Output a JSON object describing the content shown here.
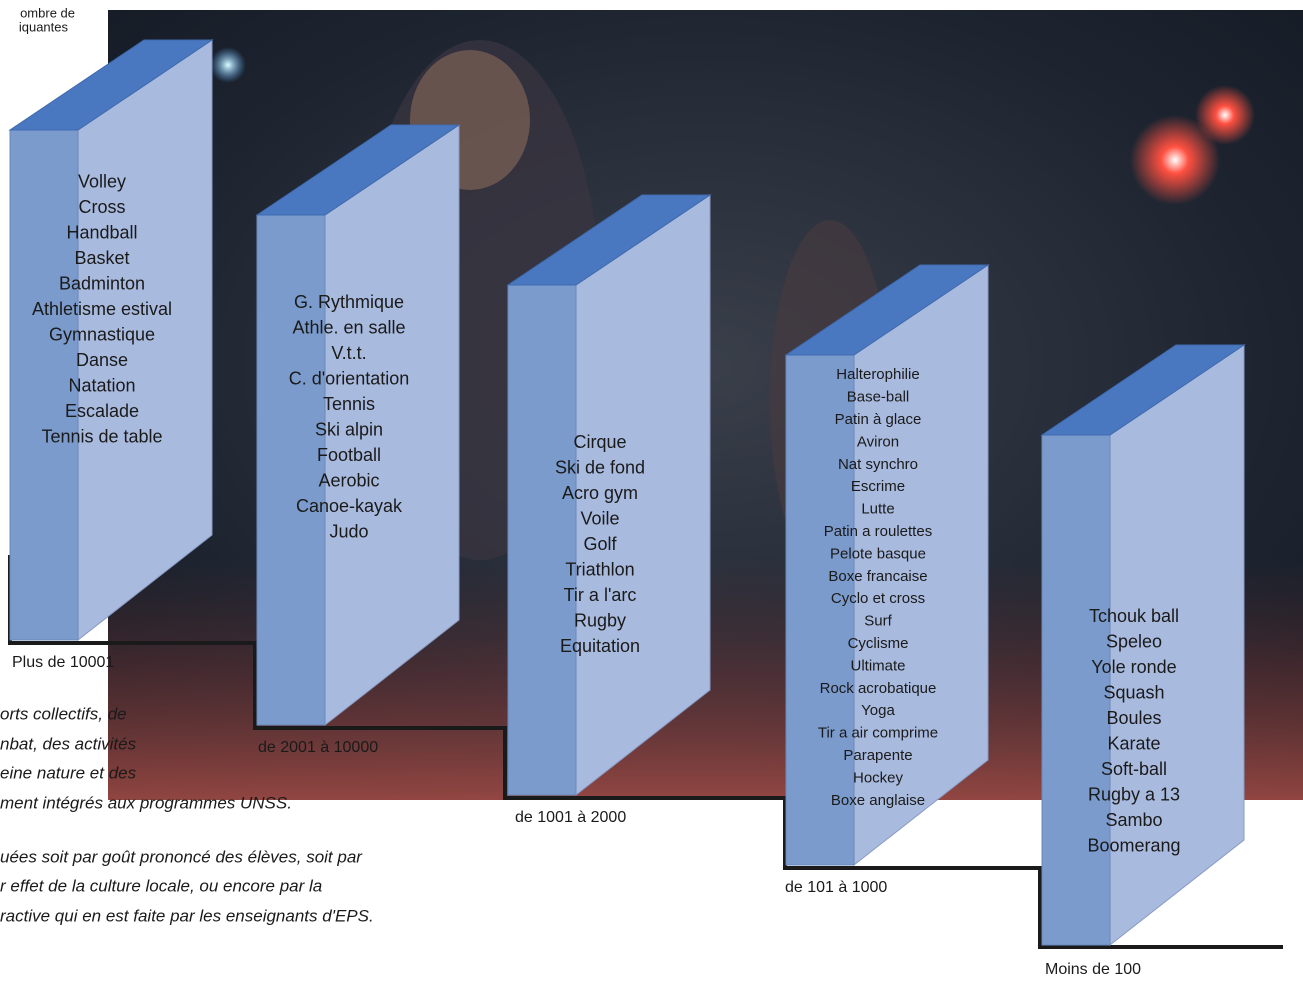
{
  "axis_label": [
    "ombre de",
    "iquantes"
  ],
  "blocks": [
    {
      "range": "Plus de 10001",
      "items": [
        "Volley",
        "Cross",
        "Handball",
        "Basket",
        "Badminton",
        "Athletisme estival",
        "Gymnastique",
        "Danse",
        "Natation",
        "Escalade",
        "Tennis de table"
      ]
    },
    {
      "range": "de 2001 à 10000",
      "items": [
        "G. Rythmique",
        "Athle. en salle",
        "V.t.t.",
        "C. d'orientation",
        "Tennis",
        "Ski alpin",
        "Football",
        "Aerobic",
        "Canoe-kayak",
        "Judo"
      ]
    },
    {
      "range": "de 1001 à 2000",
      "items": [
        "Cirque",
        "Ski de fond",
        "Acro gym",
        "Voile",
        "Golf",
        "Triathlon",
        "Tir a l'arc",
        "Rugby",
        "Equitation"
      ]
    },
    {
      "range": "de 101 à 1000",
      "items": [
        "Halterophilie",
        "Base-ball",
        "Patin à glace",
        "Aviron",
        "Nat synchro",
        "Escrime",
        "Lutte",
        "Patin a roulettes",
        "Pelote basque",
        "Boxe francaise",
        "Cyclo et cross",
        "Surf",
        "Cyclisme",
        "Ultimate",
        "Rock acrobatique",
        "Yoga",
        "Tir a air comprime",
        "Parapente",
        "Hockey",
        "Boxe anglaise"
      ]
    },
    {
      "range": "Moins de 100",
      "items": [
        "Tchouk ball",
        "Speleo",
        "Yole ronde",
        "Squash",
        "Boules",
        "Karate",
        "Soft-ball",
        "Rugby a 13",
        "Sambo",
        "Boomerang"
      ]
    }
  ],
  "note": [
    "orts collectifs, de",
    "nbat, des activités",
    "eine nature et des",
    "ment intégrés aux programmes UNSS.",
    "uées soit par goût prononcé des élèves, soit par",
    "r effet de la culture locale, ou encore par la",
    "ractive qui en est faite par les enseignants d'EPS."
  ]
}
